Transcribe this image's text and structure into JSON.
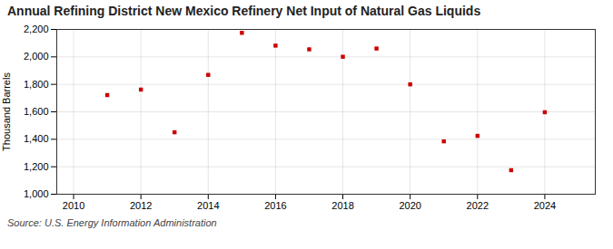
{
  "chart_data": {
    "type": "scatter",
    "title": "Annual Refining District New Mexico Refinery Net Input of Natural Gas Liquids",
    "ylabel": "Thousand Barrels",
    "source": "Source: U.S. Energy Information Administration",
    "x": [
      2011,
      2012,
      2013,
      2014,
      2015,
      2016,
      2017,
      2018,
      2019,
      2020,
      2021,
      2022,
      2023,
      2024
    ],
    "values": [
      1722,
      1762,
      1451,
      1869,
      2175,
      2082,
      2055,
      2001,
      2061,
      1800,
      1385,
      1425,
      1175,
      1597
    ],
    "color": "#cc0000",
    "marker": "square",
    "xlim": [
      2009.5,
      2025.5
    ],
    "xticks": [
      2010,
      2012,
      2014,
      2016,
      2018,
      2020,
      2022,
      2024
    ],
    "ylim": [
      1000,
      2200
    ],
    "yticks": [
      {
        "value": 1000,
        "label": "1,000"
      },
      {
        "value": 1200,
        "label": "1,200"
      },
      {
        "value": 1400,
        "label": "1,400"
      },
      {
        "value": 1600,
        "label": "1,600"
      },
      {
        "value": 1800,
        "label": "1,800"
      },
      {
        "value": 2000,
        "label": "2,000"
      },
      {
        "value": 2200,
        "label": "2,200"
      }
    ],
    "grid": true
  }
}
